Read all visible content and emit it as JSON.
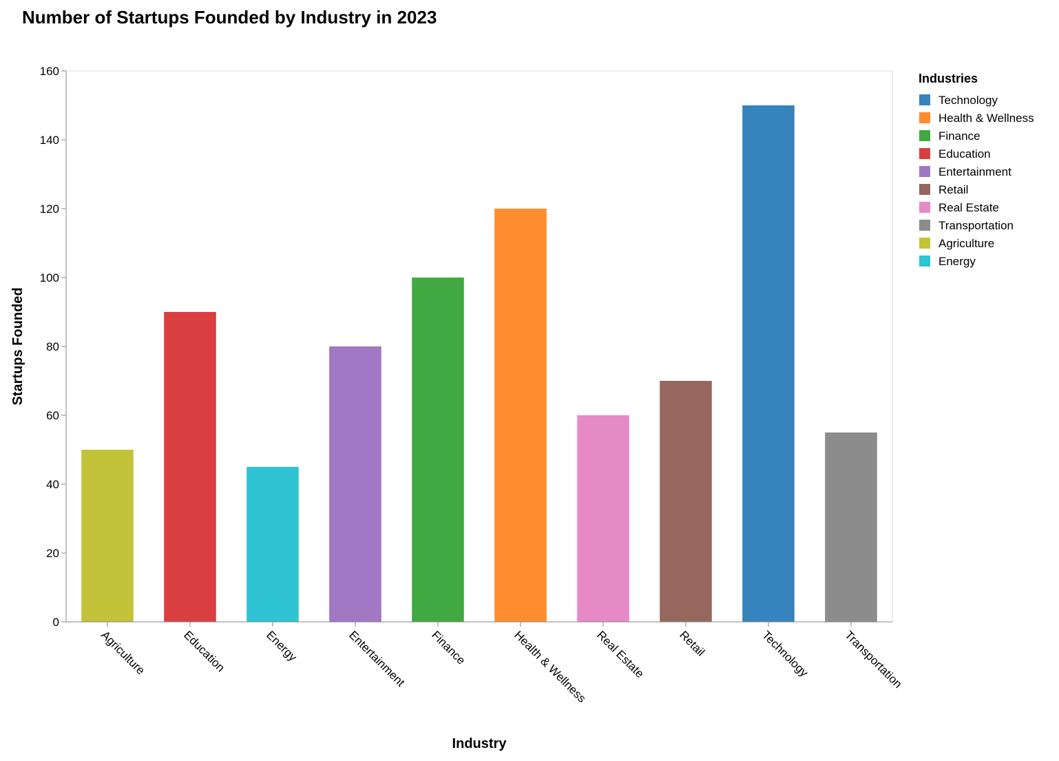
{
  "chart_data": {
    "type": "bar",
    "title": "Number of Startups Founded by Industry in 2023",
    "xlabel": "Industry",
    "ylabel": "Startups Founded",
    "ylim": [
      0,
      160
    ],
    "yticks": [
      0,
      20,
      40,
      60,
      80,
      100,
      120,
      140,
      160
    ],
    "categories": [
      "Agriculture",
      "Education",
      "Energy",
      "Entertainment",
      "Finance",
      "Health & Wellness",
      "Real Estate",
      "Retail",
      "Technology",
      "Transportation"
    ],
    "values": [
      50,
      90,
      45,
      80,
      100,
      120,
      60,
      70,
      150,
      55
    ],
    "colors": {
      "Technology": "#3683bd",
      "Health & Wellness": "#ff8c2e",
      "Finance": "#42a942",
      "Education": "#d93f40",
      "Entertainment": "#a078c3",
      "Retail": "#96685d",
      "Real Estate": "#e68ac6",
      "Transportation": "#8c8c8c",
      "Agriculture": "#c3c339",
      "Energy": "#2ec4d3"
    },
    "grid": false,
    "legend": {
      "title": "Industries",
      "placement": "top-right",
      "entries": [
        "Technology",
        "Health & Wellness",
        "Finance",
        "Education",
        "Entertainment",
        "Retail",
        "Real Estate",
        "Transportation",
        "Agriculture",
        "Energy"
      ]
    }
  }
}
